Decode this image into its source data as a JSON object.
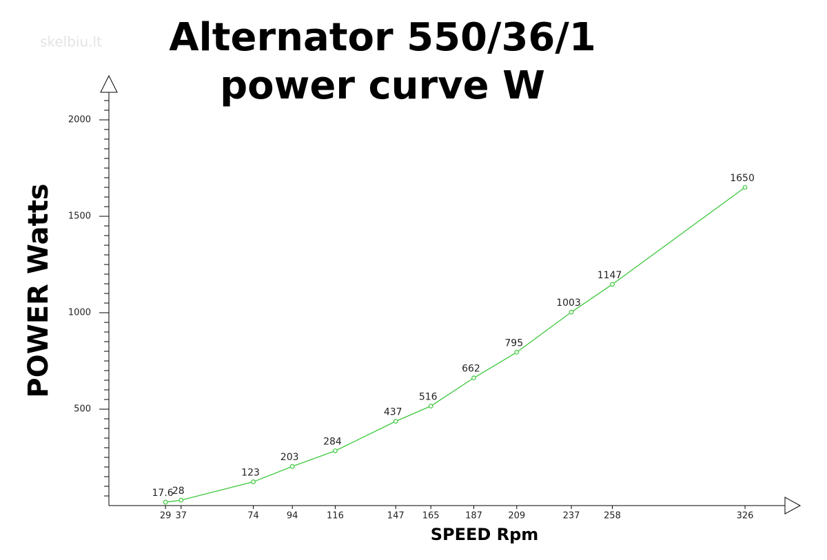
{
  "chart_data": {
    "type": "line",
    "title": [
      "Alternator 550/36/1",
      "power curve W"
    ],
    "watermark": "skelbiu.lt",
    "x_label": "SPEED Rpm",
    "y_label": "POWER Watts",
    "x": [
      29,
      37,
      74,
      94,
      116,
      147,
      165,
      187,
      209,
      237,
      258,
      326
    ],
    "series": [
      {
        "name": "power",
        "color": "#3cc83c",
        "values": [
          17.6,
          28,
          123,
          203,
          284,
          437,
          516,
          662,
          795,
          1003,
          1147,
          1650
        ]
      }
    ],
    "xlim": [
      0,
      350
    ],
    "xticks": [
      29,
      37,
      74,
      94,
      116,
      147,
      165,
      187,
      209,
      237,
      258,
      326
    ],
    "ylim": [
      0,
      2150
    ],
    "yticks": [
      500,
      1000,
      1500,
      2000
    ],
    "markers": true,
    "data_labels": true
  }
}
